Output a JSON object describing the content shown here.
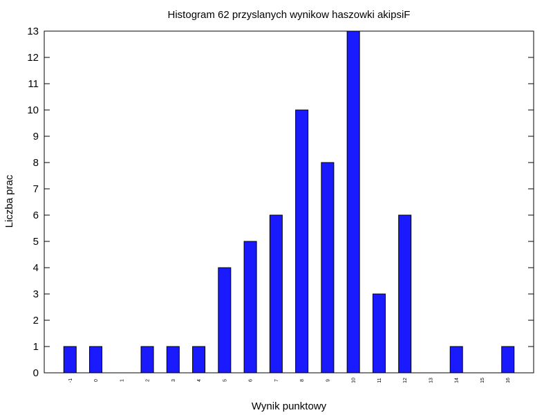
{
  "chart_data": {
    "type": "bar",
    "title": "Histogram 62 przyslanych wynikow haszowki akipsiF",
    "xlabel": "Wynik punktowy",
    "ylabel": "Liczba prac",
    "categories": [
      "-1",
      "0",
      "1",
      "2",
      "3",
      "4",
      "5",
      "6",
      "7",
      "8",
      "9",
      "10",
      "11",
      "12",
      "13",
      "14",
      "15",
      "16"
    ],
    "values": [
      1,
      1,
      0,
      1,
      1,
      1,
      4,
      5,
      6,
      10,
      8,
      13,
      3,
      6,
      0,
      1,
      0,
      1
    ],
    "ylim": [
      0,
      13
    ],
    "yticks": [
      "0",
      "1",
      "2",
      "3",
      "4",
      "5",
      "6",
      "7",
      "8",
      "9",
      "10",
      "11",
      "12",
      "13"
    ],
    "bar_color": "#1a1aff",
    "grid": false,
    "legend": "none"
  }
}
